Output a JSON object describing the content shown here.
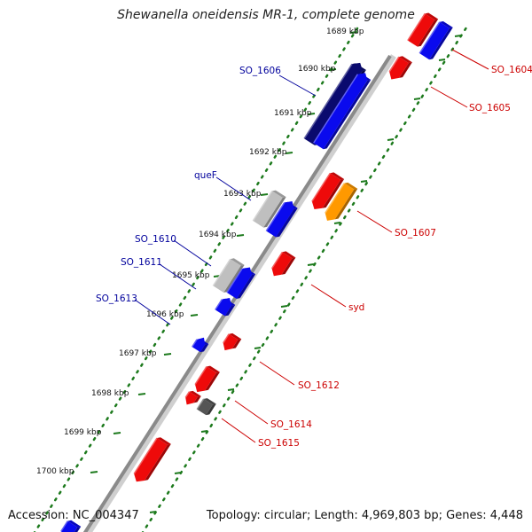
{
  "title": "Shewanella oneidensis MR-1, complete genome",
  "footer": {
    "accession": "Accession: NC_004347",
    "summary": "Topology: circular; Length: 4,969,803 bp; Genes: 4,448"
  },
  "colors": {
    "backbone": "#8a8a8a",
    "tick": "#1d7a1d",
    "forward_label": "#00009c",
    "reverse_label": "#cc0000"
  },
  "ticks": [
    {
      "text": "1689 kbp"
    },
    {
      "text": "1690 kbp"
    },
    {
      "text": "1691 kbp"
    },
    {
      "text": "1692 kbp"
    },
    {
      "text": "1693 kbp"
    },
    {
      "text": "1694 kbp"
    },
    {
      "text": "1695 kbp"
    },
    {
      "text": "1696 kbp"
    },
    {
      "text": "1697 kbp"
    },
    {
      "text": "1698 kbp"
    },
    {
      "text": "1699 kbp"
    },
    {
      "text": "1700 kbp"
    }
  ],
  "labels": [
    {
      "text": "SO_1606",
      "strand": "forward"
    },
    {
      "text": "queF",
      "strand": "forward"
    },
    {
      "text": "SO_1610",
      "strand": "forward"
    },
    {
      "text": "SO_1611",
      "strand": "forward"
    },
    {
      "text": "SO_1613",
      "strand": "forward"
    },
    {
      "text": "SO_1604",
      "strand": "reverse"
    },
    {
      "text": "SO_1605",
      "strand": "reverse"
    },
    {
      "text": "SO_1607",
      "strand": "reverse"
    },
    {
      "text": "syd",
      "strand": "reverse"
    },
    {
      "text": "SO_1612",
      "strand": "reverse"
    },
    {
      "text": "SO_1614",
      "strand": "reverse"
    },
    {
      "text": "SO_1615",
      "strand": "reverse"
    }
  ],
  "features": [
    {
      "name": "feature-navy",
      "color": "#0a0a6e"
    },
    {
      "name": "feature-blue",
      "color": "#0a0aee"
    },
    {
      "name": "feature-red",
      "color": "#ee0a0a"
    },
    {
      "name": "feature-orange",
      "color": "#ff9900"
    },
    {
      "name": "feature-gray",
      "color": "#bfbfbf"
    },
    {
      "name": "feature-darkgray",
      "color": "#555555"
    }
  ]
}
